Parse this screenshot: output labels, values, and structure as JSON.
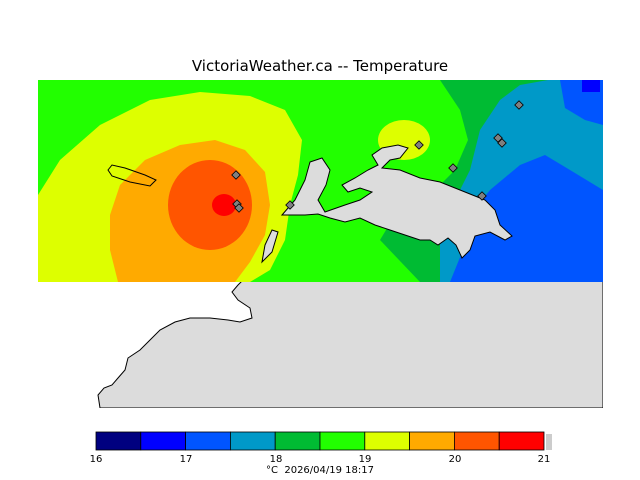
{
  "title": "VictoriaWeather.ca -- Temperature",
  "caption": {
    "unit": "°C",
    "timestamp": "2026/04/19 18:17"
  },
  "colorbar": {
    "ticks": [
      "16",
      "17",
      "18",
      "19",
      "20",
      "21"
    ],
    "bands": [
      {
        "from": 16.0,
        "to": 16.5,
        "color": "#000080"
      },
      {
        "from": 16.5,
        "to": 17.0,
        "color": "#0000ff"
      },
      {
        "from": 17.0,
        "to": 17.5,
        "color": "#0055ff"
      },
      {
        "from": 17.5,
        "to": 18.0,
        "color": "#0099c8"
      },
      {
        "from": 18.0,
        "to": 18.5,
        "color": "#00bb33"
      },
      {
        "from": 18.5,
        "to": 19.0,
        "color": "#22ff00"
      },
      {
        "from": 19.0,
        "to": 19.5,
        "color": "#ddff00"
      },
      {
        "from": 19.5,
        "to": 20.0,
        "color": "#ffaa00"
      },
      {
        "from": 20.0,
        "to": 20.5,
        "color": "#ff5500"
      },
      {
        "from": 20.5,
        "to": 21.0,
        "color": "#ff0000"
      }
    ]
  },
  "colors": {
    "land": "#dcdcdc",
    "station": "#808080"
  },
  "stations": 10
}
